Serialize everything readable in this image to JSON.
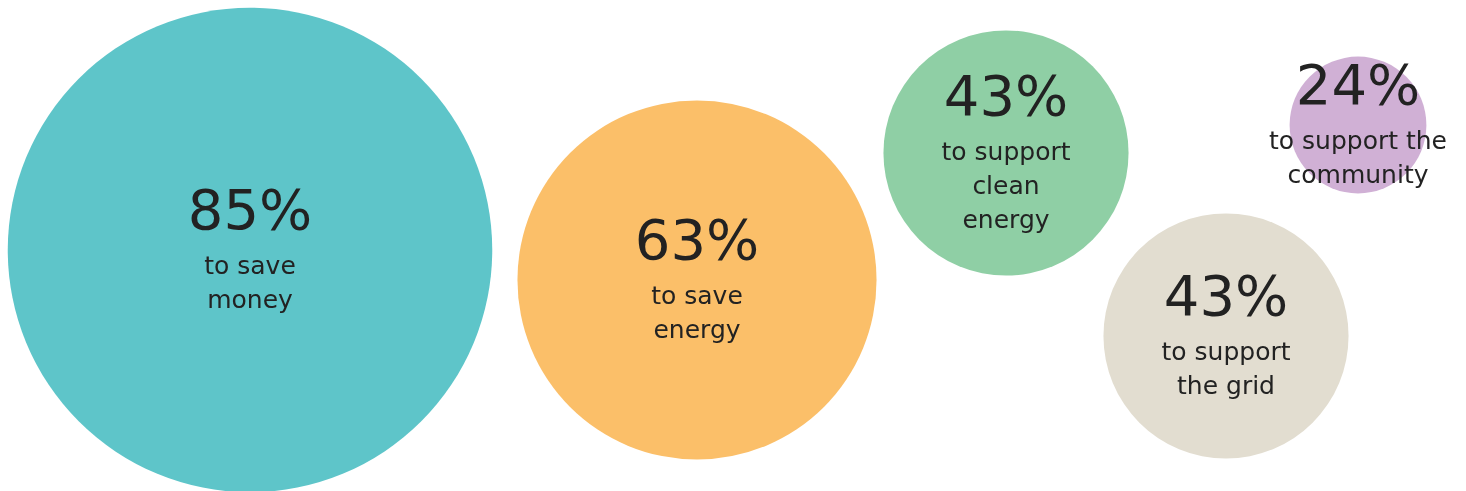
{
  "chart_data": {
    "type": "other",
    "categories": [
      "to save\nmoney",
      "to save\nenergy",
      "to support\nclean\nenergy",
      "to support\nthe grid",
      "to support the\ncommunity"
    ],
    "values": [
      85,
      63,
      43,
      43,
      24
    ],
    "value_labels": [
      "85%",
      "63%",
      "43%",
      "43%",
      "24%"
    ],
    "colors": [
      "#5ec5c9",
      "#fbbf69",
      "#8fcfa5",
      "#e2ddd0",
      "#d0b0d5"
    ]
  }
}
